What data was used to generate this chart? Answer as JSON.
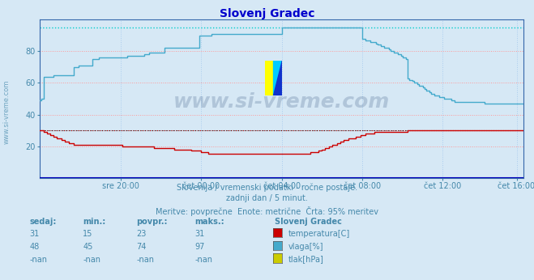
{
  "title": "Slovenj Gradec",
  "title_color": "#0000cc",
  "bg_color": "#d6e8f5",
  "plot_bg_color": "#d6e8f5",
  "grid_color_h": "#ff9999",
  "grid_color_v": "#aaccee",
  "xlim": [
    0,
    288
  ],
  "ylim": [
    0,
    100
  ],
  "yticks": [
    20,
    40,
    60,
    80
  ],
  "xtick_labels": [
    "sre 20:00",
    "čet 00:00",
    "čet 04:00",
    "čet 08:00",
    "čet 12:00",
    "čet 16:00"
  ],
  "xtick_positions": [
    48,
    96,
    144,
    192,
    240,
    284
  ],
  "hline_cyan_y": 95,
  "hline_red_y": 30,
  "text_line1": "Slovenija / vremenski podatki - ročne postaje.",
  "text_line2": "zadnji dan / 5 minut.",
  "text_line3": "Meritve: povprečne  Enote: metrične  Črta: 95% meritev",
  "text_color": "#4488aa",
  "watermark": "www.si-vreme.com",
  "watermark_color": "#1a3a6a",
  "legend_title": "Slovenj Gradec",
  "legend_items": [
    {
      "label": "temperatura[C]",
      "color": "#cc0000"
    },
    {
      "label": "vlaga[%]",
      "color": "#44aacc"
    },
    {
      "label": "tlak[hPa]",
      "color": "#cccc00"
    }
  ],
  "table_headers": [
    "sedaj:",
    "min.:",
    "povpr.:",
    "maks.:"
  ],
  "table_data": [
    [
      "31",
      "15",
      "23",
      "31"
    ],
    [
      "48",
      "45",
      "74",
      "97"
    ],
    [
      "-nan",
      "-nan",
      "-nan",
      "-nan"
    ]
  ],
  "temp_color": "#cc0000",
  "vlaga_color": "#44aacc",
  "temp_data_x": [
    0,
    1,
    2,
    3,
    4,
    5,
    6,
    7,
    8,
    9,
    10,
    11,
    12,
    13,
    14,
    15,
    16,
    17,
    18,
    19,
    20,
    21,
    22,
    23,
    24,
    25,
    26,
    27,
    28,
    29,
    30,
    31,
    32,
    33,
    34,
    35,
    36,
    37,
    38,
    39,
    40,
    41,
    42,
    43,
    44,
    45,
    46,
    47,
    48,
    49,
    50,
    51,
    52,
    53,
    54,
    55,
    56,
    57,
    58,
    59,
    60,
    61,
    62,
    63,
    64,
    65,
    66,
    67,
    68,
    69,
    70,
    71,
    72,
    73,
    74,
    75,
    76,
    77,
    78,
    79,
    80,
    81,
    82,
    83,
    84,
    85,
    86,
    87,
    88,
    89,
    90,
    91,
    92,
    93,
    94,
    95,
    96,
    97,
    98,
    99,
    100,
    101,
    102,
    103,
    104,
    105,
    106,
    107,
    108,
    109,
    110,
    111,
    112,
    113,
    114,
    115,
    116,
    117,
    118,
    119,
    120,
    121,
    122,
    123,
    124,
    125,
    126,
    127,
    128,
    129,
    130,
    131,
    132,
    133,
    134,
    135,
    136,
    137,
    138,
    139,
    140,
    141,
    142,
    143,
    144,
    145,
    146,
    147,
    148,
    149,
    150,
    151,
    152,
    153,
    154,
    155,
    156,
    157,
    158,
    159,
    160,
    161,
    162,
    163,
    164,
    165,
    166,
    167,
    168,
    169,
    170,
    171,
    172,
    173,
    174,
    175,
    176,
    177,
    178,
    179,
    180,
    181,
    182,
    183,
    184,
    185,
    186,
    187,
    188,
    189,
    190,
    191,
    192,
    193,
    194,
    195,
    196,
    197,
    198,
    199,
    200,
    201,
    202,
    203,
    204,
    205,
    206,
    207,
    208,
    209,
    210,
    211,
    212,
    213,
    214,
    215,
    216,
    217,
    218,
    219,
    220,
    221,
    222,
    223,
    224,
    225,
    226,
    227,
    228,
    229,
    230,
    231,
    232,
    233,
    234,
    235,
    236,
    237,
    238,
    239,
    240,
    241,
    242,
    243,
    244,
    245,
    246,
    247,
    248,
    249,
    250,
    251,
    252,
    253,
    254,
    255,
    256,
    257,
    258,
    259,
    260,
    261,
    262,
    263,
    264,
    265,
    266,
    267,
    268,
    269,
    270,
    271,
    272,
    273,
    274,
    275,
    276,
    277,
    278,
    279,
    280,
    281,
    282,
    283,
    284,
    285,
    286,
    287,
    288
  ],
  "temp_data_y": [
    30,
    30,
    29,
    29,
    28,
    28,
    27,
    27,
    26,
    26,
    25,
    25,
    25,
    24,
    24,
    23,
    23,
    22,
    22,
    22,
    21,
    21,
    21,
    21,
    21,
    21,
    21,
    21,
    21,
    21,
    21,
    21,
    21,
    21,
    21,
    21,
    21,
    21,
    21,
    21,
    21,
    21,
    21,
    21,
    21,
    21,
    21,
    21,
    21,
    20,
    20,
    20,
    20,
    20,
    20,
    20,
    20,
    20,
    20,
    20,
    20,
    20,
    20,
    20,
    20,
    20,
    20,
    20,
    19,
    19,
    19,
    19,
    19,
    19,
    19,
    19,
    19,
    19,
    19,
    19,
    18,
    18,
    18,
    18,
    18,
    18,
    18,
    18,
    18,
    18,
    17,
    17,
    17,
    17,
    17,
    17,
    16,
    16,
    16,
    16,
    15,
    15,
    15,
    15,
    15,
    15,
    15,
    15,
    15,
    15,
    15,
    15,
    15,
    15,
    15,
    15,
    15,
    15,
    15,
    15,
    15,
    15,
    15,
    15,
    15,
    15,
    15,
    15,
    15,
    15,
    15,
    15,
    15,
    15,
    15,
    15,
    15,
    15,
    15,
    15,
    15,
    15,
    15,
    15,
    15,
    15,
    15,
    15,
    15,
    15,
    15,
    15,
    15,
    15,
    15,
    15,
    15,
    15,
    15,
    15,
    15,
    16,
    16,
    16,
    16,
    16,
    17,
    17,
    18,
    18,
    19,
    19,
    20,
    20,
    21,
    21,
    21,
    22,
    22,
    23,
    23,
    24,
    24,
    24,
    25,
    25,
    25,
    25,
    26,
    26,
    26,
    27,
    27,
    27,
    28,
    28,
    28,
    28,
    28,
    29,
    29,
    29,
    29,
    29,
    29,
    29,
    29,
    29,
    29,
    29,
    29,
    29,
    29,
    29,
    29,
    29,
    29,
    29,
    29,
    30,
    30,
    30,
    30,
    30,
    30,
    30,
    30,
    30,
    30,
    30,
    30,
    30,
    30,
    30,
    30,
    30,
    30,
    30,
    30,
    30,
    30,
    30,
    30,
    30,
    30,
    30,
    30,
    30,
    30,
    30,
    30,
    30,
    30,
    30,
    30,
    30,
    30,
    30,
    30,
    30,
    30,
    30,
    30,
    30,
    30,
    30,
    30,
    30,
    30,
    30,
    30,
    30,
    30,
    30,
    30,
    30,
    30,
    30,
    30,
    30,
    30,
    30,
    30,
    30,
    30,
    30,
    30,
    30,
    30
  ],
  "vlaga_data_x": [
    0,
    1,
    2,
    3,
    4,
    5,
    6,
    7,
    8,
    9,
    10,
    11,
    12,
    13,
    14,
    15,
    16,
    17,
    18,
    19,
    20,
    21,
    22,
    23,
    24,
    25,
    26,
    27,
    28,
    29,
    30,
    31,
    32,
    33,
    34,
    35,
    36,
    37,
    38,
    39,
    40,
    41,
    42,
    43,
    44,
    45,
    46,
    47,
    48,
    49,
    50,
    51,
    52,
    53,
    54,
    55,
    56,
    57,
    58,
    59,
    60,
    61,
    62,
    63,
    64,
    65,
    66,
    67,
    68,
    69,
    70,
    71,
    72,
    73,
    74,
    75,
    76,
    77,
    78,
    79,
    80,
    81,
    82,
    83,
    84,
    85,
    86,
    87,
    88,
    89,
    90,
    91,
    92,
    93,
    94,
    95,
    96,
    97,
    98,
    99,
    100,
    101,
    102,
    103,
    104,
    105,
    106,
    107,
    108,
    109,
    110,
    111,
    112,
    113,
    114,
    115,
    116,
    117,
    118,
    119,
    120,
    121,
    122,
    123,
    124,
    125,
    126,
    127,
    128,
    129,
    130,
    131,
    132,
    133,
    134,
    135,
    136,
    137,
    138,
    139,
    140,
    141,
    142,
    143,
    144,
    145,
    146,
    147,
    148,
    149,
    150,
    151,
    152,
    153,
    154,
    155,
    156,
    157,
    158,
    159,
    160,
    161,
    162,
    163,
    164,
    165,
    166,
    167,
    168,
    169,
    170,
    171,
    172,
    173,
    174,
    175,
    176,
    177,
    178,
    179,
    180,
    181,
    182,
    183,
    184,
    185,
    186,
    187,
    188,
    189,
    190,
    191,
    192,
    193,
    194,
    195,
    196,
    197,
    198,
    199,
    200,
    201,
    202,
    203,
    204,
    205,
    206,
    207,
    208,
    209,
    210,
    211,
    212,
    213,
    214,
    215,
    216,
    217,
    218,
    219,
    220,
    221,
    222,
    223,
    224,
    225,
    226,
    227,
    228,
    229,
    230,
    231,
    232,
    233,
    234,
    235,
    236,
    237,
    238,
    239,
    240,
    241,
    242,
    243,
    244,
    245,
    246,
    247,
    248,
    249,
    250,
    251,
    252,
    253,
    254,
    255,
    256,
    257,
    258,
    259,
    260,
    261,
    262,
    263,
    264,
    265,
    266,
    267,
    268,
    269,
    270,
    271,
    272,
    273,
    274,
    275,
    276,
    277,
    278,
    279,
    280,
    281,
    282,
    283,
    284,
    285,
    286,
    287,
    288
  ],
  "vlaga_data_y": [
    49,
    50,
    64,
    64,
    64,
    64,
    64,
    64,
    65,
    65,
    65,
    65,
    65,
    65,
    65,
    65,
    65,
    65,
    65,
    65,
    70,
    70,
    70,
    71,
    71,
    71,
    71,
    71,
    71,
    71,
    71,
    75,
    75,
    75,
    75,
    76,
    76,
    76,
    76,
    76,
    76,
    76,
    76,
    76,
    76,
    76,
    76,
    76,
    76,
    76,
    76,
    76,
    77,
    77,
    77,
    77,
    77,
    77,
    77,
    77,
    77,
    77,
    78,
    78,
    78,
    79,
    79,
    79,
    79,
    79,
    79,
    79,
    79,
    79,
    82,
    82,
    82,
    82,
    82,
    82,
    82,
    82,
    82,
    82,
    82,
    82,
    82,
    82,
    82,
    82,
    82,
    82,
    82,
    82,
    82,
    90,
    90,
    90,
    90,
    90,
    90,
    90,
    91,
    91,
    91,
    91,
    91,
    91,
    91,
    91,
    91,
    91,
    91,
    91,
    91,
    91,
    91,
    91,
    91,
    91,
    91,
    91,
    91,
    91,
    91,
    91,
    91,
    91,
    91,
    91,
    91,
    91,
    91,
    91,
    91,
    91,
    91,
    91,
    91,
    91,
    91,
    91,
    91,
    91,
    95,
    95,
    95,
    95,
    95,
    95,
    95,
    95,
    95,
    95,
    95,
    95,
    95,
    95,
    95,
    95,
    95,
    95,
    95,
    95,
    95,
    95,
    95,
    95,
    95,
    95,
    95,
    95,
    95,
    95,
    95,
    95,
    95,
    95,
    95,
    95,
    95,
    95,
    95,
    95,
    95,
    95,
    95,
    95,
    95,
    95,
    95,
    95,
    88,
    88,
    87,
    87,
    87,
    86,
    86,
    86,
    85,
    84,
    84,
    83,
    83,
    82,
    82,
    82,
    81,
    80,
    80,
    79,
    79,
    78,
    78,
    77,
    76,
    76,
    75,
    63,
    62,
    62,
    61,
    60,
    60,
    59,
    58,
    58,
    57,
    56,
    55,
    55,
    54,
    53,
    53,
    52,
    52,
    52,
    51,
    51,
    51,
    50,
    50,
    50,
    50,
    49,
    49,
    48,
    48,
    48,
    48,
    48,
    48,
    48,
    48,
    48,
    48,
    48,
    48,
    48,
    48,
    48,
    48,
    48,
    48,
    47,
    47,
    47,
    47,
    47,
    47,
    47,
    47,
    47,
    47,
    47,
    47,
    47,
    47,
    47,
    47,
    47,
    47,
    47,
    47,
    47,
    47,
    47,
    47
  ]
}
